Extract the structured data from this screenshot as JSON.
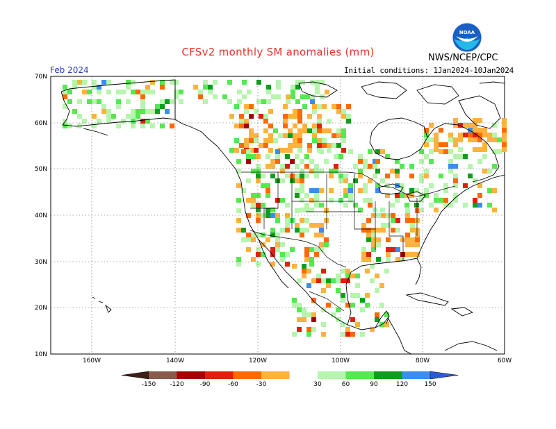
{
  "title": "CFSv2 monthly SM anomalies (mm)",
  "month": "Feb 2024",
  "initial_conditions": "Initial conditions: 1Jan2024-10Jan2024",
  "agency": "NWS/NCEP/CPC",
  "logo_text": "NOAA",
  "lat_labels": [
    "70N",
    "60N",
    "50N",
    "40N",
    "30N",
    "20N",
    "10N"
  ],
  "lon_labels": [
    "160W",
    "140W",
    "120W",
    "100W",
    "80W",
    "60W"
  ],
  "legend": {
    "labels": [
      "-150",
      "-120",
      "-90",
      "-60",
      "-30",
      "30",
      "60",
      "90",
      "120",
      "150"
    ],
    "colors": [
      "#3d1f18",
      "#8a5a4a",
      "#a50000",
      "#e0200a",
      "#ff6a00",
      "#ffb23f",
      "#ffffff",
      "#b6f5ad",
      "#55e851",
      "#0e9e1e",
      "#3a8ef0",
      "#2a5ed0"
    ]
  }
}
